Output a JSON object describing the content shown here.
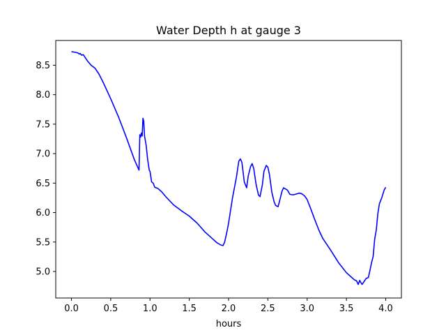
{
  "chart_data": {
    "type": "line",
    "title": "Water Depth h at gauge 3",
    "xlabel": "hours",
    "ylabel": "",
    "xlim": [
      -0.2,
      4.2
    ],
    "ylim": [
      4.55,
      8.92
    ],
    "xticks": [
      0.0,
      0.5,
      1.0,
      1.5,
      2.0,
      2.5,
      3.0,
      3.5,
      4.0
    ],
    "xtick_labels": [
      "0.0",
      "0.5",
      "1.0",
      "1.5",
      "2.0",
      "2.5",
      "3.0",
      "3.5",
      "4.0"
    ],
    "yticks": [
      5.0,
      5.5,
      6.0,
      6.5,
      7.0,
      7.5,
      8.0,
      8.5
    ],
    "ytick_labels": [
      "5.0",
      "5.5",
      "6.0",
      "6.5",
      "7.0",
      "7.5",
      "8.0",
      "8.5"
    ],
    "grid": false,
    "legend": "none",
    "series": [
      {
        "color": "#0000ff",
        "x": [
          0.0,
          0.05,
          0.08,
          0.1,
          0.11,
          0.13,
          0.15,
          0.17,
          0.2,
          0.25,
          0.3,
          0.35,
          0.4,
          0.5,
          0.6,
          0.7,
          0.8,
          0.85,
          0.86,
          0.87,
          0.88,
          0.89,
          0.9,
          0.91,
          0.92,
          0.93,
          0.95,
          0.97,
          0.99,
          1.0,
          1.02,
          1.04,
          1.06,
          1.1,
          1.15,
          1.2,
          1.3,
          1.4,
          1.5,
          1.6,
          1.7,
          1.8,
          1.85,
          1.9,
          1.93,
          1.95,
          1.98,
          2.0,
          2.05,
          2.1,
          2.13,
          2.15,
          2.17,
          2.2,
          2.23,
          2.25,
          2.28,
          2.3,
          2.32,
          2.35,
          2.38,
          2.4,
          2.43,
          2.45,
          2.48,
          2.5,
          2.52,
          2.55,
          2.58,
          2.6,
          2.63,
          2.65,
          2.68,
          2.7,
          2.75,
          2.78,
          2.82,
          2.85,
          2.9,
          2.93,
          2.97,
          3.0,
          3.05,
          3.1,
          3.15,
          3.2,
          3.3,
          3.4,
          3.5,
          3.55,
          3.6,
          3.63,
          3.65,
          3.67,
          3.68,
          3.7,
          3.72,
          3.75,
          3.78,
          3.8,
          3.82,
          3.84,
          3.86,
          3.88,
          3.9,
          3.92,
          3.95,
          3.98,
          4.0
        ],
        "y": [
          8.73,
          8.72,
          8.71,
          8.69,
          8.7,
          8.67,
          8.68,
          8.64,
          8.58,
          8.5,
          8.45,
          8.35,
          8.22,
          7.93,
          7.62,
          7.27,
          6.9,
          6.75,
          6.72,
          7.32,
          7.28,
          7.35,
          7.3,
          7.6,
          7.55,
          7.3,
          7.15,
          6.9,
          6.72,
          6.7,
          6.52,
          6.5,
          6.43,
          6.41,
          6.35,
          6.27,
          6.13,
          6.03,
          5.94,
          5.82,
          5.67,
          5.55,
          5.49,
          5.45,
          5.44,
          5.5,
          5.68,
          5.82,
          6.25,
          6.6,
          6.87,
          6.91,
          6.85,
          6.52,
          6.42,
          6.62,
          6.78,
          6.83,
          6.75,
          6.48,
          6.3,
          6.27,
          6.47,
          6.7,
          6.8,
          6.77,
          6.65,
          6.35,
          6.18,
          6.12,
          6.1,
          6.2,
          6.36,
          6.42,
          6.38,
          6.31,
          6.3,
          6.31,
          6.33,
          6.32,
          6.28,
          6.22,
          6.05,
          5.87,
          5.7,
          5.56,
          5.36,
          5.15,
          4.98,
          4.92,
          4.86,
          4.84,
          4.78,
          4.85,
          4.82,
          4.78,
          4.82,
          4.88,
          4.9,
          5.02,
          5.15,
          5.25,
          5.55,
          5.7,
          5.98,
          6.15,
          6.25,
          6.38,
          6.43
        ]
      }
    ]
  }
}
